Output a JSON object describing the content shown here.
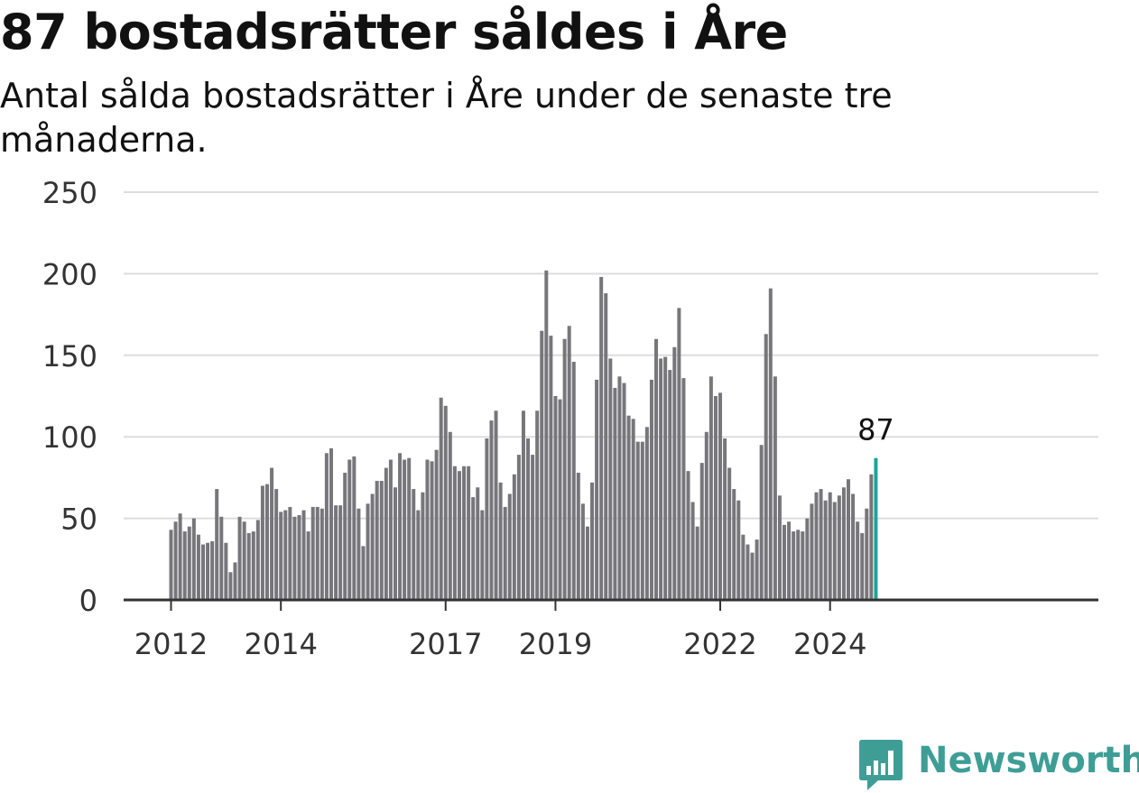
{
  "title": "87 bostadsrätter såldes i Åre",
  "subtitle": "Antal sålda bostadsrätter i Åre under de senaste tre månaderna.",
  "colors": {
    "bar": "#77767b",
    "highlight": "#1aa59a",
    "grid": "#dddddd",
    "axis": "#333333",
    "brand": "#3e9e96"
  },
  "chart_data": {
    "type": "bar",
    "x_start": "2012-01",
    "x_frequency": "monthly",
    "ylim": [
      0,
      250
    ],
    "yticks": [
      0,
      50,
      100,
      150,
      200,
      250
    ],
    "xticks": [
      "2012",
      "2014",
      "2017",
      "2019",
      "2022",
      "2024"
    ],
    "grid": true,
    "values": [
      43,
      48,
      53,
      42,
      45,
      50,
      40,
      34,
      35,
      36,
      68,
      51,
      35,
      17,
      23,
      51,
      48,
      41,
      42,
      49,
      70,
      71,
      81,
      68,
      54,
      55,
      57,
      51,
      52,
      55,
      42,
      57,
      57,
      56,
      90,
      93,
      58,
      58,
      78,
      86,
      88,
      56,
      33,
      59,
      65,
      73,
      73,
      81,
      86,
      69,
      90,
      86,
      87,
      68,
      55,
      66,
      86,
      85,
      92,
      124,
      119,
      103,
      82,
      79,
      82,
      82,
      63,
      69,
      55,
      99,
      110,
      116,
      72,
      57,
      65,
      77,
      89,
      116,
      99,
      89,
      116,
      165,
      202,
      162,
      125,
      123,
      160,
      168,
      146,
      78,
      59,
      45,
      72,
      135,
      198,
      188,
      148,
      130,
      137,
      133,
      113,
      111,
      97,
      97,
      106,
      135,
      160,
      148,
      149,
      141,
      155,
      179,
      136,
      79,
      60,
      45,
      84,
      103,
      137,
      125,
      127,
      99,
      81,
      68,
      61,
      40,
      34,
      29,
      37,
      95,
      163,
      191,
      137,
      64,
      46,
      48,
      42,
      43,
      42,
      50,
      59,
      66,
      68,
      61,
      66,
      60,
      64,
      69,
      74,
      65,
      48,
      41,
      56,
      77,
      87
    ],
    "highlight_label": "87"
  },
  "logo": {
    "text": "Newsworthy"
  }
}
